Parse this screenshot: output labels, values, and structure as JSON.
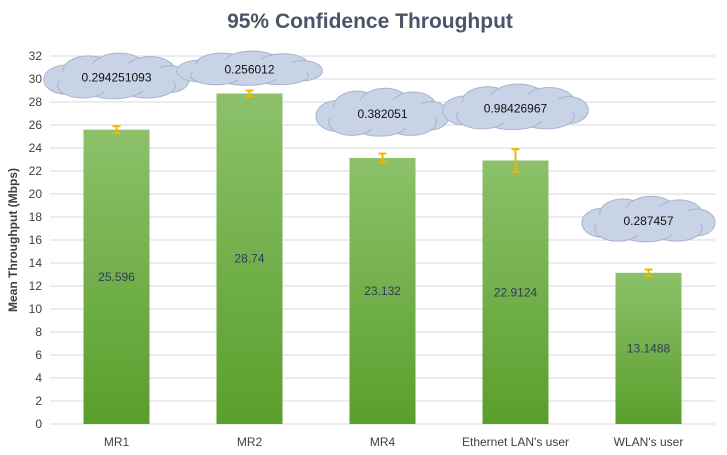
{
  "chart_data": {
    "type": "bar",
    "title": "95% Confidence Throughput",
    "ylabel": "Mean Throughput (Mbps)",
    "xlabel": "",
    "ylim": [
      0,
      32
    ],
    "yticks": [
      0,
      2,
      4,
      6,
      8,
      10,
      12,
      14,
      16,
      18,
      20,
      22,
      24,
      26,
      28,
      30,
      32
    ],
    "grid": true,
    "categories": [
      "MR1",
      "MR2",
      "MR4",
      "Ethernet LAN's user",
      "WLAN's user"
    ],
    "values": [
      25.596,
      28.74,
      23.132,
      22.9124,
      13.1488
    ],
    "value_labels": [
      "25.596",
      "28.74",
      "23.132",
      "22.9124",
      "13.1488"
    ],
    "error_bars": [
      0.294251093,
      0.256012,
      0.382051,
      0.98426967,
      0.287457
    ],
    "error_labels": [
      "0.294251093",
      "0.256012",
      "0.382051",
      "0.98426967",
      "0.287457"
    ],
    "colors": {
      "bar_top": "#8cc16a",
      "bar_bottom": "#5a9e2c",
      "error": "#f2b500",
      "cloud": "#c9d3e6",
      "cloud_stroke": "#a7b4cf",
      "grid": "#d9d9d9"
    }
  }
}
